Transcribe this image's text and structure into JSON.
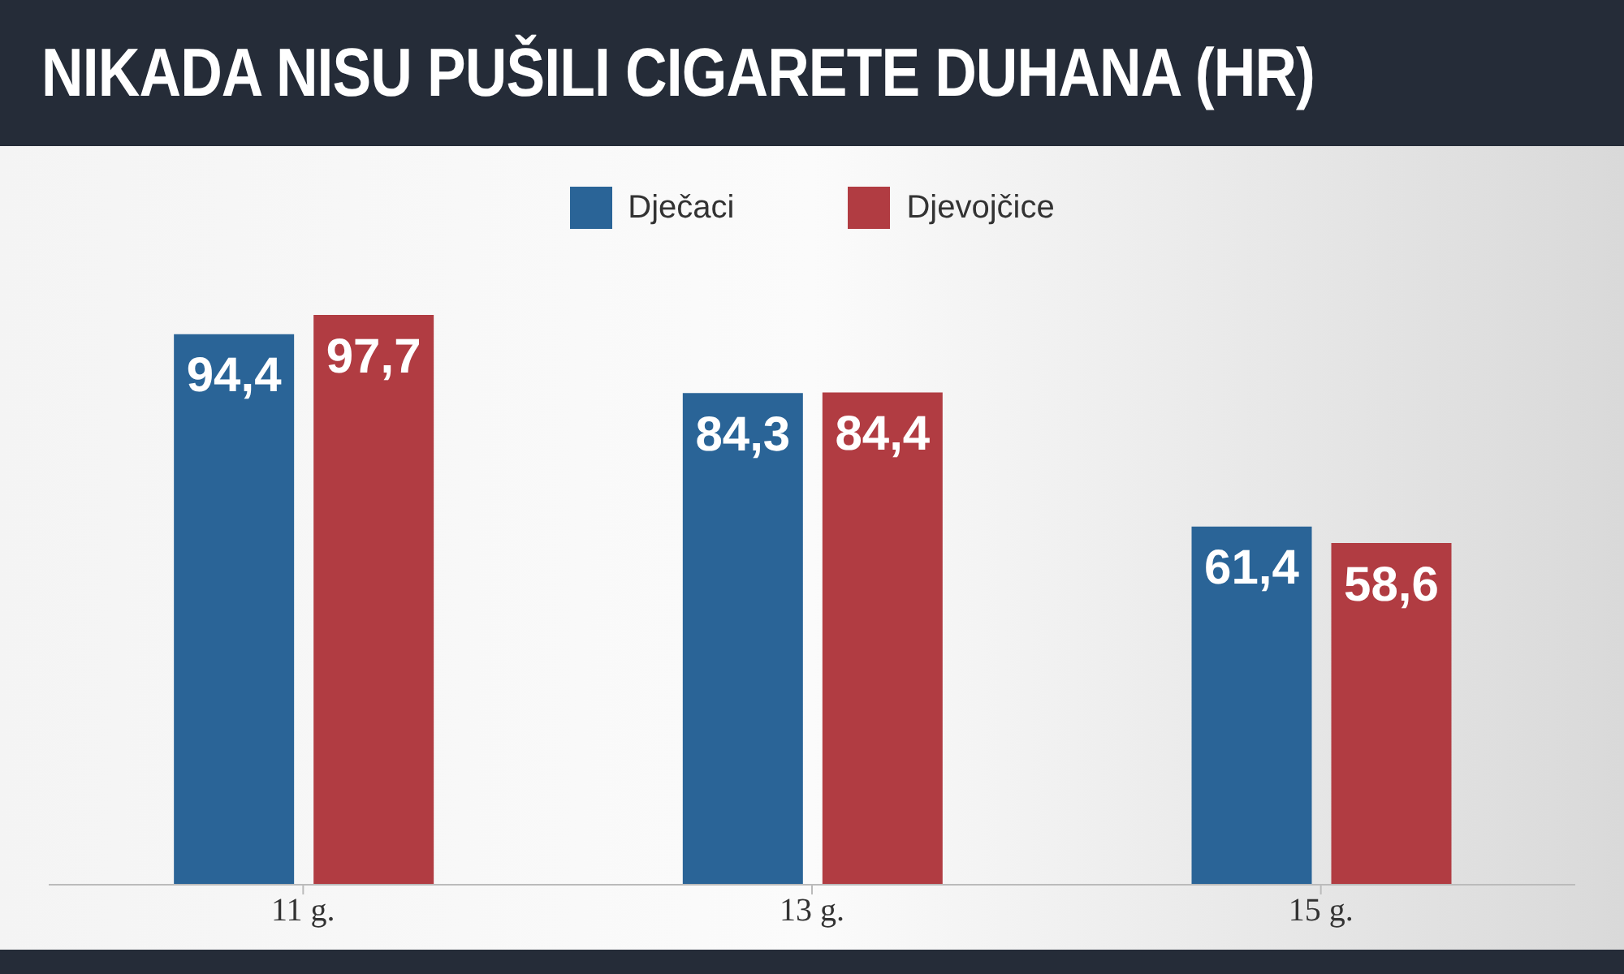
{
  "chart_data": {
    "type": "bar",
    "title": "NIKADA NISU PUŠILI CIGARETE DUHANA (HR)",
    "categories": [
      "11 g.",
      "13 g.",
      "15 g."
    ],
    "series": [
      {
        "name": "Dječaci",
        "color": "#2a6497",
        "values": [
          94.4,
          84.3,
          61.4
        ],
        "value_labels": [
          "94,4",
          "84,3",
          "61,4"
        ]
      },
      {
        "name": "Djevojčice",
        "color": "#b13c42",
        "values": [
          97.7,
          84.4,
          58.6
        ],
        "value_labels": [
          "97,7",
          "84,4",
          "58,6"
        ]
      }
    ],
    "legend": "top",
    "tick_labels": "x"
  }
}
